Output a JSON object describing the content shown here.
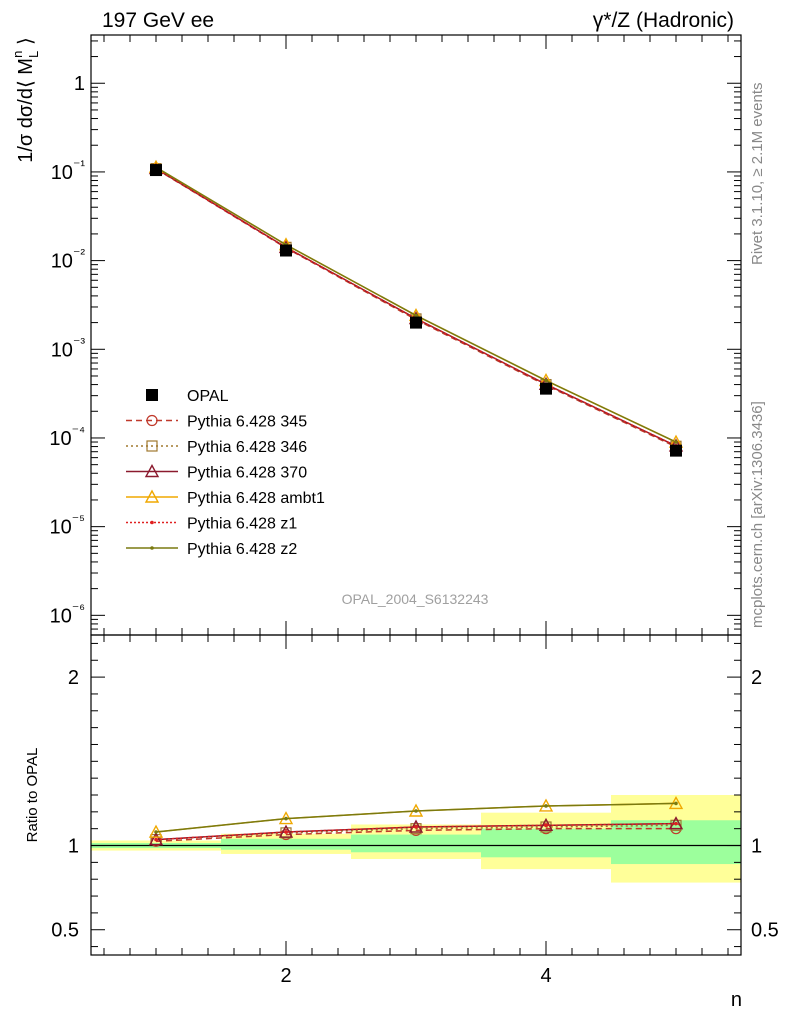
{
  "header": {
    "left_title": "197 GeV ee",
    "right_title": "γ*/Z (Hadronic)"
  },
  "side_labels": {
    "rivet": "Rivet 3.1.10, ≥ 2.1M events",
    "mcplots": "mcplots.cern.ch [arXiv:1306.3436]"
  },
  "watermark": "OPAL_2004_S6132243",
  "colors": {
    "data": "#000000",
    "p345": "#c0392b",
    "p346": "#a0782e",
    "p370": "#8b1a2e",
    "ambt1": "#f0a800",
    "z1": "#e02020",
    "z2": "#7a7a10",
    "band_inner": "#9cff9c",
    "band_outer": "#ffff99"
  },
  "chart_data": [
    {
      "type": "line",
      "name": "main",
      "ylabel": "1/σ dσ/d⟨ M_L^n ⟩",
      "yscale": "log",
      "xlim": [
        0.5,
        5.5
      ],
      "ylim": [
        6e-07,
        3.5
      ],
      "x": [
        1,
        2,
        3,
        4,
        5
      ],
      "y_tick_labels": [
        "1",
        "10⁻¹",
        "10⁻²",
        "10⁻³",
        "10⁻⁴",
        "10⁻⁵",
        "10⁻⁶"
      ],
      "legend_position": "middle-left",
      "series": [
        {
          "key": "data",
          "name": "OPAL",
          "marker": "square",
          "values": [
            0.105,
            0.013,
            0.002,
            0.00036,
            7.2e-05
          ]
        },
        {
          "key": "p345",
          "name": "Pythia 6.428 345",
          "marker": "circle",
          "dash": "6,4",
          "values": [
            0.108,
            0.0139,
            0.00216,
            0.000393,
            7.92e-05
          ]
        },
        {
          "key": "p346",
          "name": "Pythia 6.428 346",
          "marker": "open-square",
          "dash": "2,3",
          "values": [
            0.109,
            0.0141,
            0.0022,
            0.0004,
            8.06e-05
          ]
        },
        {
          "key": "p370",
          "name": "Pythia 6.428 370",
          "marker": "triangle",
          "dash": "",
          "values": [
            0.109,
            0.0141,
            0.00222,
            0.000403,
            8.14e-05
          ]
        },
        {
          "key": "ambt1",
          "name": "Pythia 6.428 ambt1",
          "marker": "triangle",
          "dash": "",
          "values": [
            0.113,
            0.0151,
            0.00241,
            0.000445,
            9e-05
          ]
        },
        {
          "key": "z1",
          "name": "Pythia 6.428 z1",
          "marker": "dot",
          "dash": "2,2",
          "values": [
            0.109,
            0.0141,
            0.00222,
            0.000404,
            8.15e-05
          ]
        },
        {
          "key": "z2",
          "name": "Pythia 6.428 z2",
          "marker": "dot",
          "dash": "",
          "values": [
            0.113,
            0.0151,
            0.00241,
            0.000444,
            8.98e-05
          ]
        }
      ]
    },
    {
      "type": "line",
      "name": "ratio",
      "ylabel": "Ratio to OPAL",
      "xlabel": "n",
      "xlim": [
        0.5,
        5.5
      ],
      "ylim": [
        0.35,
        2.25
      ],
      "x_tick_labels": [
        "2",
        "4"
      ],
      "y_tick_labels": [
        "0.5",
        "1",
        "2"
      ],
      "bands": {
        "edges": [
          0.5,
          1.5,
          2.5,
          3.5,
          4.5,
          5.5
        ],
        "inner": [
          [
            0.985,
            1.015
          ],
          [
            0.975,
            1.04
          ],
          [
            0.96,
            1.065
          ],
          [
            0.93,
            1.1
          ],
          [
            0.89,
            1.15
          ]
        ],
        "outer": [
          [
            0.97,
            1.03
          ],
          [
            0.95,
            1.07
          ],
          [
            0.92,
            1.125
          ],
          [
            0.86,
            1.195
          ],
          [
            0.78,
            1.3
          ]
        ]
      },
      "series": [
        {
          "key": "p345",
          "values": [
            1.025,
            1.065,
            1.09,
            1.1,
            1.1
          ]
        },
        {
          "key": "p346",
          "values": [
            1.035,
            1.075,
            1.1,
            1.11,
            1.12
          ]
        },
        {
          "key": "p370",
          "values": [
            1.035,
            1.08,
            1.11,
            1.12,
            1.13
          ]
        },
        {
          "key": "ambt1",
          "values": [
            1.08,
            1.16,
            1.205,
            1.235,
            1.25
          ]
        },
        {
          "key": "z1",
          "values": [
            1.035,
            1.08,
            1.11,
            1.12,
            1.13
          ]
        },
        {
          "key": "z2",
          "values": [
            1.08,
            1.16,
            1.205,
            1.235,
            1.25
          ]
        }
      ]
    }
  ]
}
